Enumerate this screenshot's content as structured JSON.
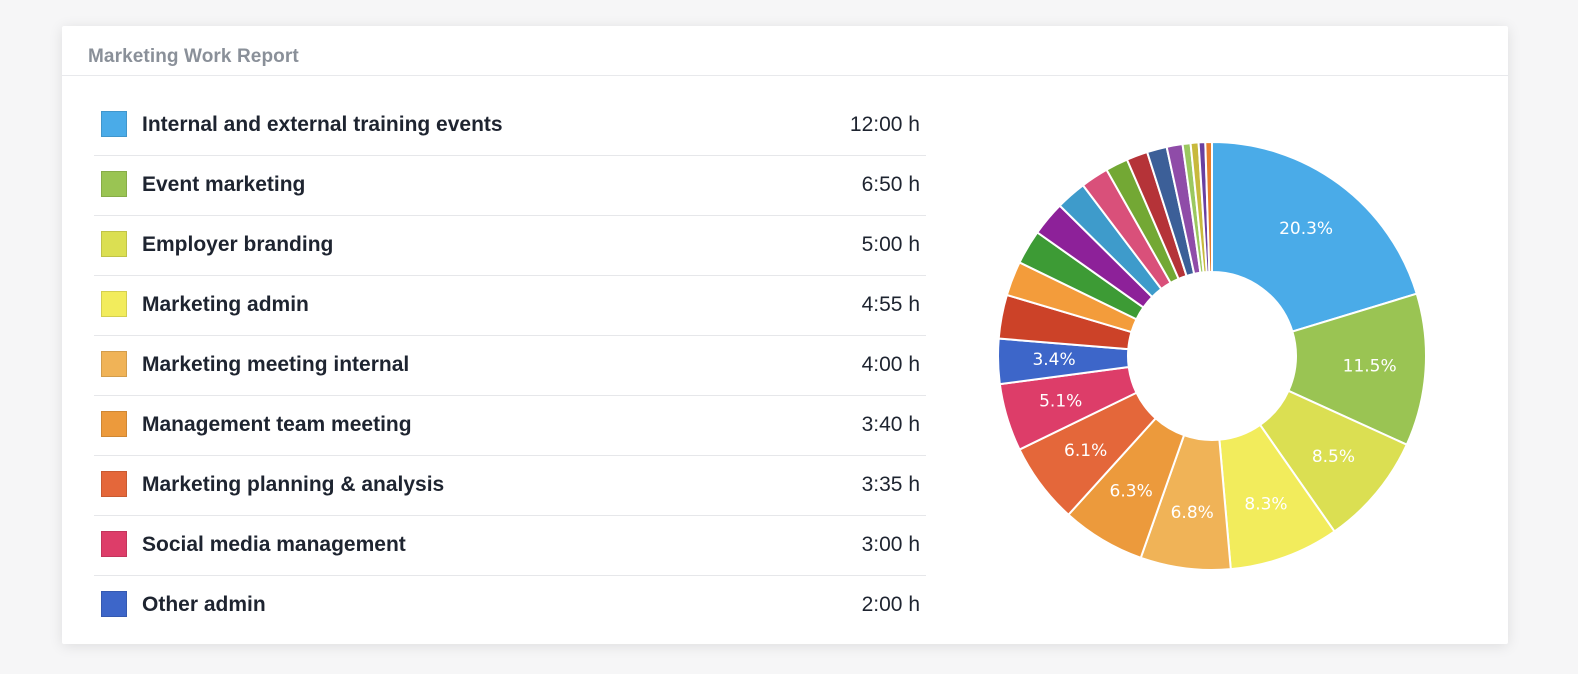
{
  "card": {
    "title": "Marketing Work Report"
  },
  "chart_data": {
    "type": "pie",
    "donut": true,
    "legend_placement": "left",
    "legend": [
      {
        "label": "Internal and external training events",
        "value": "12:00 h",
        "color": "#4aabe8"
      },
      {
        "label": "Event marketing",
        "value": "6:50 h",
        "color": "#9ac453"
      },
      {
        "label": "Employer branding",
        "value": "5:00 h",
        "color": "#dbdf52"
      },
      {
        "label": "Marketing admin",
        "value": "4:55 h",
        "color": "#f2ec5c"
      },
      {
        "label": "Marketing meeting internal",
        "value": "4:00 h",
        "color": "#f0b357"
      },
      {
        "label": "Management team meeting",
        "value": "3:40 h",
        "color": "#ec9a3c"
      },
      {
        "label": "Marketing planning & analysis",
        "value": "3:35 h",
        "color": "#e4673a"
      },
      {
        "label": "Social media management",
        "value": "3:00 h",
        "color": "#dd3d69"
      },
      {
        "label": "Other admin",
        "value": "2:00 h",
        "color": "#3d66c9"
      }
    ],
    "slices": [
      {
        "value": 20.3,
        "label": "20.3%",
        "color": "#4aabe8"
      },
      {
        "value": 11.5,
        "label": "11.5%",
        "color": "#9ac453"
      },
      {
        "value": 8.5,
        "label": "8.5%",
        "color": "#dbdf52"
      },
      {
        "value": 8.3,
        "label": "8.3%",
        "color": "#f2ec5c"
      },
      {
        "value": 6.8,
        "label": "6.8%",
        "color": "#f0b357"
      },
      {
        "value": 6.3,
        "label": "6.3%",
        "color": "#ec9a3c"
      },
      {
        "value": 6.1,
        "label": "6.1%",
        "color": "#e4673a"
      },
      {
        "value": 5.1,
        "label": "5.1%",
        "color": "#dd3d69"
      },
      {
        "value": 3.4,
        "label": "3.4%",
        "color": "#3d66c9"
      },
      {
        "value": 3.3,
        "label": "",
        "color": "#cc4228"
      },
      {
        "value": 2.6,
        "label": "",
        "color": "#f39c3b"
      },
      {
        "value": 2.6,
        "label": "",
        "color": "#3d9b35"
      },
      {
        "value": 2.6,
        "label": "",
        "color": "#8d2199"
      },
      {
        "value": 2.3,
        "label": "",
        "color": "#3e9bcb"
      },
      {
        "value": 2.1,
        "label": "",
        "color": "#d9507a"
      },
      {
        "value": 1.7,
        "label": "",
        "color": "#73a834"
      },
      {
        "value": 1.6,
        "label": "",
        "color": "#b53338"
      },
      {
        "value": 1.5,
        "label": "",
        "color": "#3c5f98"
      },
      {
        "value": 1.2,
        "label": "",
        "color": "#8f4ca8"
      },
      {
        "value": 0.6,
        "label": "",
        "color": "#9bc860"
      },
      {
        "value": 0.6,
        "label": "",
        "color": "#c8b93d"
      },
      {
        "value": 0.5,
        "label": "",
        "color": "#6a3fa0"
      },
      {
        "value": 0.5,
        "label": "",
        "color": "#e77d2c"
      }
    ]
  }
}
